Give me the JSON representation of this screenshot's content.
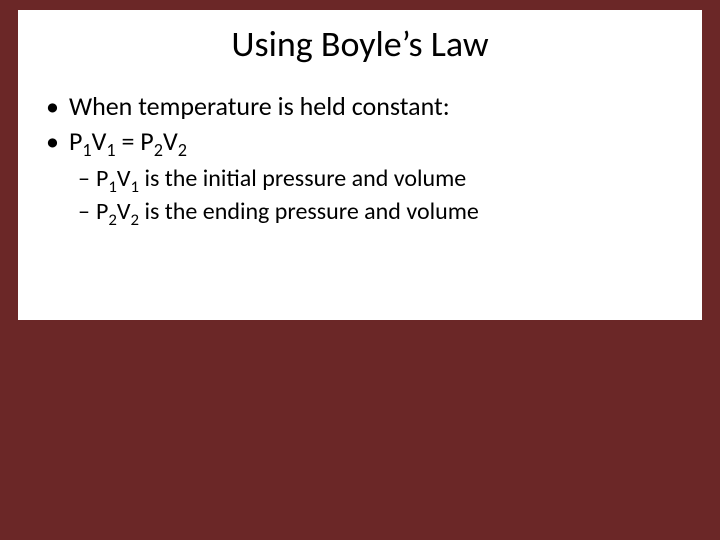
{
  "background_color": "#6b2727",
  "content_background": "#ffffff",
  "text_color": "#000000",
  "title": "Using Boyle’s Law",
  "title_fontsize": 36,
  "body_fontsize": 26,
  "sub_fontsize": 24,
  "bullets": [
    {
      "text": "When temperature is held constant:"
    },
    {
      "text_html": "P<sub>1</sub>V<sub>1</sub> = P<sub>2</sub>V<sub>2</sub>"
    }
  ],
  "sub_bullets": [
    {
      "text_html": "P<sub>1</sub>V<sub>1</sub> is the initial pressure and volume"
    },
    {
      "text_html": "P<sub>2</sub>V<sub>2</sub> is the ending pressure and volume"
    }
  ]
}
